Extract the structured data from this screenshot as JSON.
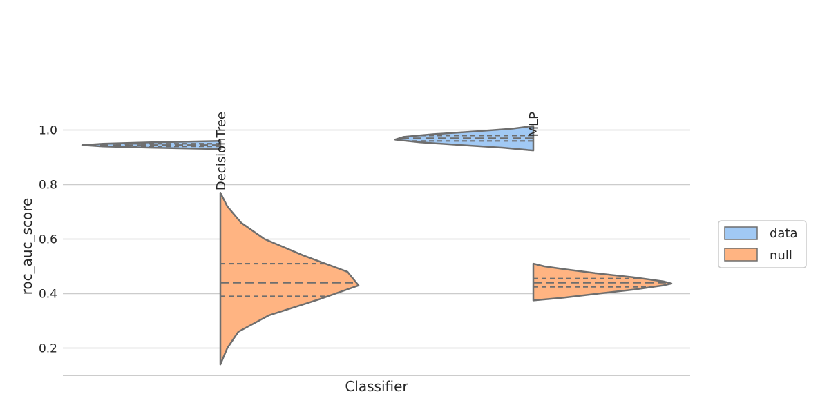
{
  "chart_data": {
    "type": "violin",
    "title": "",
    "xlabel": "Classifier",
    "ylabel": "roc_auc_score",
    "ylim": [
      0.1,
      1.1
    ],
    "yticks": [
      0.2,
      0.4,
      0.6,
      0.8,
      1.0
    ],
    "ytick_labels": [
      "0.2",
      "0.4",
      "0.6",
      "0.8",
      "1.0"
    ],
    "categories": [
      "DecisionTree",
      "MLP"
    ],
    "split": true,
    "inner": "quartiles",
    "grid": "horizontal",
    "legend": {
      "placement": "right",
      "entries": [
        "data",
        "null"
      ]
    },
    "colors": {
      "data": "#a1c9f4",
      "null": "#ffb482",
      "edge": "#6e6e6e",
      "grid": "#cccccc"
    },
    "series": [
      {
        "name": "data",
        "side": "left",
        "violins": [
          {
            "category": "DecisionTree",
            "min": 0.93,
            "max": 0.96,
            "q1": 0.94,
            "median": 0.945,
            "q3": 0.95,
            "profile": [
              [
                0.93,
                0.0
              ],
              [
                0.935,
                0.5
              ],
              [
                0.94,
                0.85
              ],
              [
                0.945,
                1.0
              ],
              [
                0.95,
                0.85
              ],
              [
                0.955,
                0.5
              ],
              [
                0.96,
                0.0
              ]
            ]
          },
          {
            "category": "MLP",
            "min": 0.925,
            "max": 1.015,
            "q1": 0.96,
            "median": 0.97,
            "q3": 0.98,
            "profile": [
              [
                0.925,
                0.0
              ],
              [
                0.935,
                0.22
              ],
              [
                0.945,
                0.52
              ],
              [
                0.955,
                0.82
              ],
              [
                0.965,
                1.0
              ],
              [
                0.975,
                0.94
              ],
              [
                0.985,
                0.72
              ],
              [
                0.995,
                0.42
              ],
              [
                1.005,
                0.15
              ],
              [
                1.015,
                0.0
              ]
            ]
          }
        ]
      },
      {
        "name": "null",
        "side": "right",
        "violins": [
          {
            "category": "DecisionTree",
            "min": 0.14,
            "max": 0.77,
            "q1": 0.39,
            "median": 0.44,
            "q3": 0.51,
            "profile": [
              [
                0.14,
                0.0
              ],
              [
                0.2,
                0.05
              ],
              [
                0.26,
                0.13
              ],
              [
                0.32,
                0.35
              ],
              [
                0.38,
                0.72
              ],
              [
                0.43,
                1.0
              ],
              [
                0.48,
                0.92
              ],
              [
                0.54,
                0.6
              ],
              [
                0.6,
                0.32
              ],
              [
                0.66,
                0.15
              ],
              [
                0.72,
                0.05
              ],
              [
                0.77,
                0.0
              ]
            ]
          },
          {
            "category": "MLP",
            "min": 0.375,
            "max": 0.51,
            "q1": 0.425,
            "median": 0.44,
            "q3": 0.455,
            "profile": [
              [
                0.375,
                0.0
              ],
              [
                0.385,
                0.22
              ],
              [
                0.4,
                0.47
              ],
              [
                0.415,
                0.73
              ],
              [
                0.43,
                0.94
              ],
              [
                0.437,
                1.0
              ],
              [
                0.445,
                0.94
              ],
              [
                0.46,
                0.72
              ],
              [
                0.475,
                0.45
              ],
              [
                0.49,
                0.22
              ],
              [
                0.5,
                0.08
              ],
              [
                0.51,
                0.0
              ]
            ]
          }
        ]
      }
    ]
  }
}
